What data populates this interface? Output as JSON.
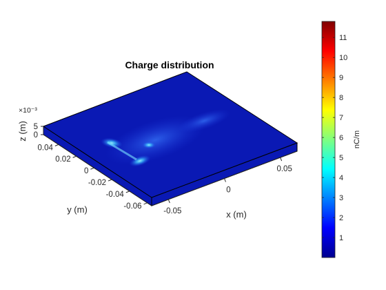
{
  "chart_data": {
    "type": "surface-3d",
    "title": "Charge distribution",
    "xlabel": "x (m)",
    "ylabel": "y (m)",
    "zlabel": "z (m)",
    "z_exponent": "×10⁻³",
    "x_ticks": [
      {
        "value": -0.05,
        "label": "-0.05"
      },
      {
        "value": 0,
        "label": "0"
      },
      {
        "value": 0.05,
        "label": "0.05"
      }
    ],
    "y_ticks": [
      {
        "value": 0.04,
        "label": "0.04"
      },
      {
        "value": 0.02,
        "label": "0.02"
      },
      {
        "value": 0,
        "label": "0"
      },
      {
        "value": -0.02,
        "label": "-0.02"
      },
      {
        "value": -0.04,
        "label": "-0.04"
      },
      {
        "value": -0.06,
        "label": "-0.06"
      }
    ],
    "z_ticks": [
      {
        "value": 5,
        "label": "5"
      },
      {
        "value": 0,
        "label": "0"
      }
    ],
    "colorbar": {
      "label": "nC/m",
      "colormap": "jet",
      "range": [
        0,
        11.8
      ],
      "ticks": [
        {
          "value": 1,
          "label": "1"
        },
        {
          "value": 2,
          "label": "2"
        },
        {
          "value": 3,
          "label": "3"
        },
        {
          "value": 4,
          "label": "4"
        },
        {
          "value": 5,
          "label": "5"
        },
        {
          "value": 6,
          "label": "6"
        },
        {
          "value": 7,
          "label": "7"
        },
        {
          "value": 8,
          "label": "8"
        },
        {
          "value": 9,
          "label": "9"
        },
        {
          "value": 10,
          "label": "10"
        },
        {
          "value": 11,
          "label": "11"
        }
      ]
    },
    "surface_base_color": "#0a19b4",
    "hotspot_color": "#55e8ff"
  }
}
